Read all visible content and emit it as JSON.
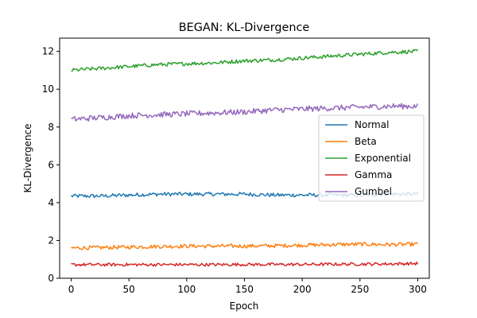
{
  "chart_data": {
    "type": "line",
    "title": "BEGAN: KL-Divergence",
    "xlabel": "Epoch",
    "ylabel": "KL-Divergence",
    "xlim": [
      -10,
      310
    ],
    "ylim": [
      0,
      12.7
    ],
    "xticks": [
      0,
      50,
      100,
      150,
      200,
      250,
      300
    ],
    "yticks": [
      0,
      2,
      4,
      6,
      8,
      10,
      12
    ],
    "grid": false,
    "legend_position": "center-right",
    "series": [
      {
        "name": "Normal",
        "color": "#1f77b4",
        "x": [
          0,
          25,
          50,
          75,
          100,
          125,
          150,
          175,
          200,
          225,
          250,
          275,
          300
        ],
        "values": [
          4.35,
          4.35,
          4.4,
          4.45,
          4.45,
          4.45,
          4.45,
          4.4,
          4.4,
          4.4,
          4.4,
          4.45,
          4.45
        ],
        "noise": 0.1
      },
      {
        "name": "Beta",
        "color": "#ff7f0e",
        "x": [
          0,
          25,
          50,
          75,
          100,
          125,
          150,
          175,
          200,
          225,
          250,
          275,
          300
        ],
        "values": [
          1.6,
          1.62,
          1.65,
          1.68,
          1.7,
          1.7,
          1.7,
          1.72,
          1.75,
          1.78,
          1.8,
          1.78,
          1.8
        ],
        "noise": 0.1
      },
      {
        "name": "Exponential",
        "color": "#2ca02c",
        "x": [
          0,
          25,
          50,
          75,
          100,
          125,
          150,
          175,
          200,
          225,
          250,
          275,
          300
        ],
        "values": [
          11.0,
          11.1,
          11.2,
          11.3,
          11.35,
          11.4,
          11.5,
          11.55,
          11.65,
          11.75,
          11.85,
          11.95,
          12.0
        ],
        "noise": 0.1
      },
      {
        "name": "Gamma",
        "color": "#d62728",
        "x": [
          0,
          25,
          50,
          75,
          100,
          125,
          150,
          175,
          200,
          225,
          250,
          275,
          300
        ],
        "values": [
          0.72,
          0.72,
          0.72,
          0.72,
          0.72,
          0.72,
          0.73,
          0.73,
          0.73,
          0.74,
          0.75,
          0.76,
          0.78
        ],
        "noise": 0.08
      },
      {
        "name": "Gumbel",
        "color": "#9467bd",
        "x": [
          0,
          25,
          50,
          75,
          100,
          125,
          150,
          175,
          200,
          225,
          250,
          275,
          300
        ],
        "values": [
          8.4,
          8.5,
          8.6,
          8.65,
          8.7,
          8.75,
          8.8,
          8.9,
          8.95,
          9.0,
          9.05,
          9.1,
          9.1
        ],
        "noise": 0.15
      }
    ]
  }
}
